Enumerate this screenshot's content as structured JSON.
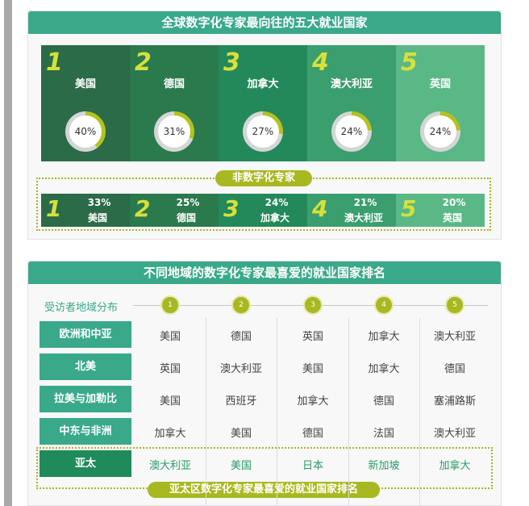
{
  "panel1": {
    "title": "全球数字化专家最向往的五大就业国家",
    "top5": [
      {
        "rank": "1",
        "country": "美国",
        "percent": "40%",
        "value": 40,
        "color": "#2b6b47"
      },
      {
        "rank": "2",
        "country": "德国",
        "percent": "31%",
        "value": 31,
        "color": "#2a7a4e"
      },
      {
        "rank": "3",
        "country": "加拿大",
        "percent": "27%",
        "value": 27,
        "color": "#23895a"
      },
      {
        "rank": "4",
        "country": "澳大利亚",
        "percent": "24%",
        "value": 24,
        "color": "#3a9e6e"
      },
      {
        "rank": "5",
        "country": "英国",
        "percent": "24%",
        "value": 24,
        "color": "#5ab886"
      }
    ],
    "non_digital_label": "非数字化专家",
    "non_digital": [
      {
        "rank": "1",
        "country": "美国",
        "percent": "33%"
      },
      {
        "rank": "2",
        "country": "德国",
        "percent": "25%"
      },
      {
        "rank": "3",
        "country": "加拿大",
        "percent": "24%"
      },
      {
        "rank": "4",
        "country": "澳大利亚",
        "percent": "21%"
      },
      {
        "rank": "5",
        "country": "英国",
        "percent": "20%"
      }
    ]
  },
  "panel2": {
    "title": "不同地域的数字化专家最喜爱的就业国家排名",
    "header_label": "受访者地域分布",
    "ranks": [
      "1",
      "2",
      "3",
      "4",
      "5"
    ],
    "rows": [
      {
        "region": "欧洲和中亚",
        "countries": [
          "美国",
          "德国",
          "英国",
          "加拿大",
          "澳大利亚"
        ]
      },
      {
        "region": "北美",
        "countries": [
          "英国",
          "澳大利亚",
          "美国",
          "加拿大",
          "德国"
        ]
      },
      {
        "region": "拉美与加勒比",
        "countries": [
          "美国",
          "西班牙",
          "加拿大",
          "德国",
          "塞浦路斯"
        ]
      },
      {
        "region": "中东与非洲",
        "countries": [
          "加拿大",
          "美国",
          "德国",
          "法国",
          "澳大利亚"
        ]
      },
      {
        "region": "亚太",
        "countries": [
          "澳大利亚",
          "美国",
          "日本",
          "新加坡",
          "加拿大"
        ]
      }
    ],
    "highlight_label": "亚太区数字化专家最喜爱的就业国家排名"
  },
  "colors": {
    "teal": "#3aa98a",
    "accent": "#a8b820",
    "highlight_row": "#1f8a5a"
  }
}
